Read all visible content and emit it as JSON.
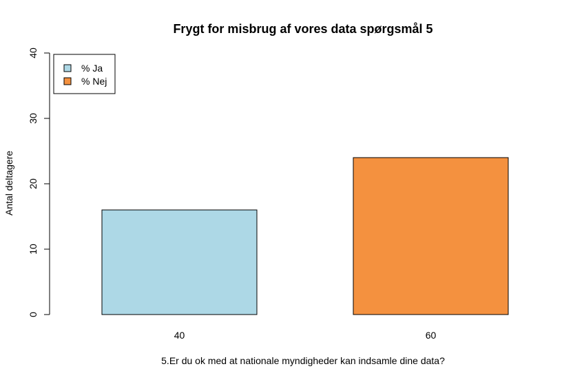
{
  "chart_data": {
    "type": "bar",
    "title": "Frygt for misbrug af vores data spørgsmål 5",
    "xlabel": "5.Er du ok med at nationale myndigheder kan indsamle dine data?",
    "ylabel": "Antal deltagere",
    "ylim": [
      0,
      40
    ],
    "yticks": [
      0,
      10,
      20,
      30,
      40
    ],
    "categories": [
      "40",
      "60"
    ],
    "values": [
      16,
      24
    ],
    "bar_colors": [
      "#add8e6",
      "#f4913f"
    ],
    "legend": {
      "position": "top-left",
      "entries": [
        {
          "label": "% Ja",
          "color": "#add8e6"
        },
        {
          "label": "% Nej",
          "color": "#f4913f"
        }
      ]
    },
    "grid": false
  }
}
